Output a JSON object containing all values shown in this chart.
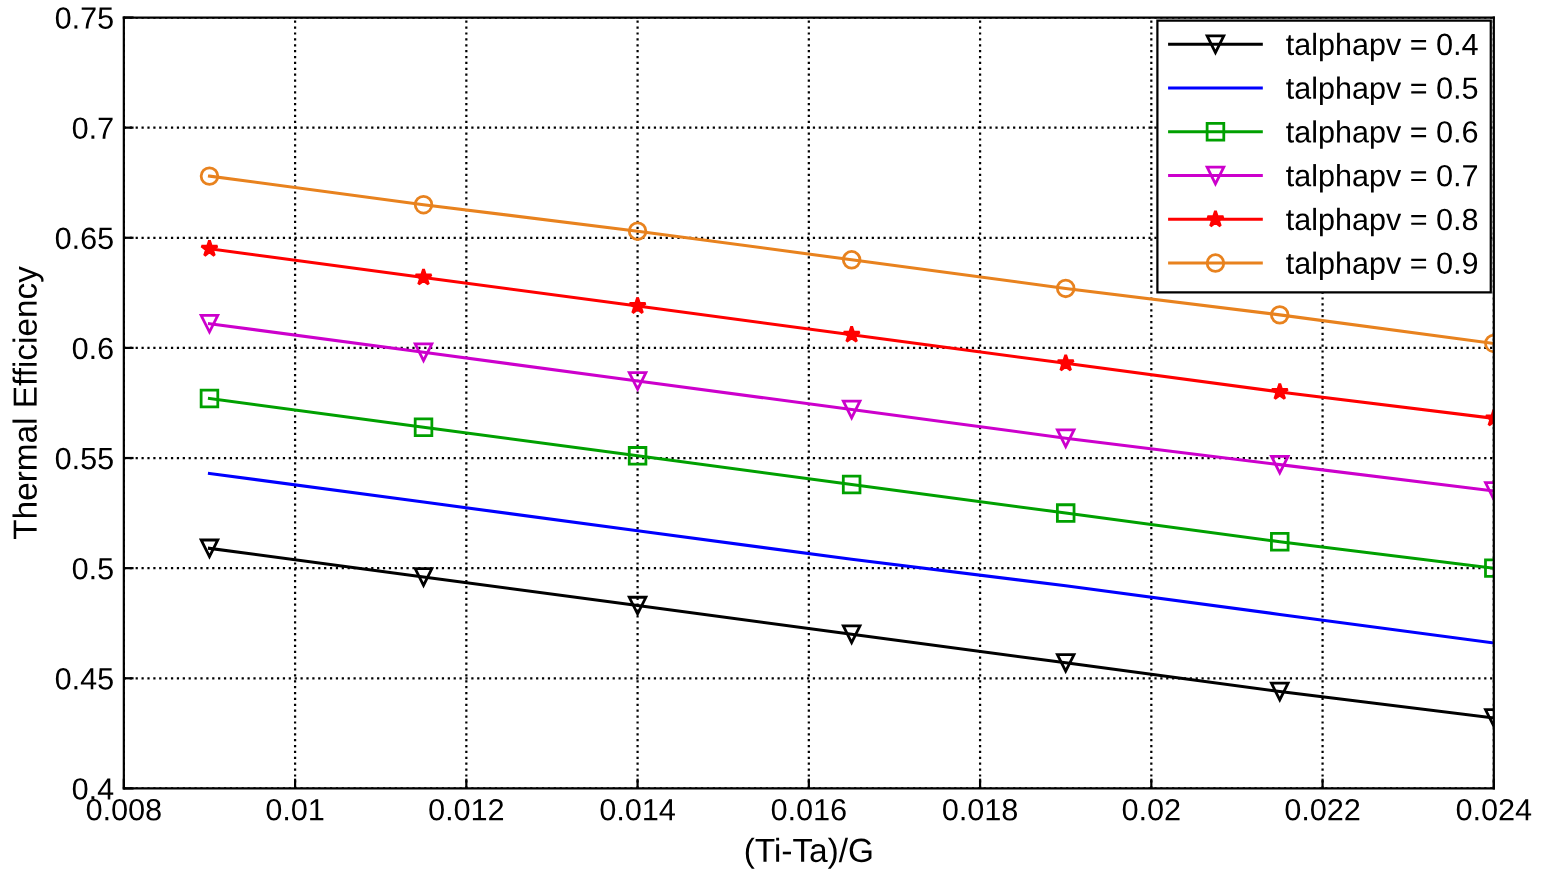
{
  "chart_data": {
    "type": "line",
    "xlabel": "(Ti-Ta)/G",
    "ylabel": "Thermal Efficiency",
    "x": [
      0.009,
      0.0115,
      0.014,
      0.0165,
      0.019,
      0.0215,
      0.024
    ],
    "series": [
      {
        "name": "talphapv = 0.4",
        "color": "#000000",
        "marker": "triangle",
        "values": [
          0.509,
          0.496,
          0.483,
          0.47,
          0.457,
          0.444,
          0.432
        ]
      },
      {
        "name": "talphapv = 0.5",
        "color": "#0000ff",
        "marker": "none",
        "values": [
          0.543,
          0.53,
          0.517,
          0.504,
          0.492,
          0.479,
          0.466
        ]
      },
      {
        "name": "talphapv = 0.6",
        "color": "#00a000",
        "marker": "square",
        "values": [
          0.577,
          0.564,
          0.551,
          0.538,
          0.525,
          0.512,
          0.5
        ]
      },
      {
        "name": "talphapv = 0.7",
        "color": "#cc00cc",
        "marker": "triangle",
        "values": [
          0.611,
          0.598,
          0.585,
          0.572,
          0.559,
          0.547,
          0.535
        ]
      },
      {
        "name": "talphapv = 0.8",
        "color": "#ff0000",
        "marker": "star",
        "values": [
          0.645,
          0.632,
          0.619,
          0.606,
          0.593,
          0.58,
          0.568
        ]
      },
      {
        "name": "talphapv = 0.9",
        "color": "#e8821e",
        "marker": "circle",
        "values": [
          0.678,
          0.665,
          0.653,
          0.64,
          0.627,
          0.615,
          0.602
        ]
      }
    ],
    "xlim": [
      0.008,
      0.024
    ],
    "xticks": [
      0.008,
      0.01,
      0.012,
      0.014,
      0.016,
      0.018,
      0.02,
      0.022,
      0.024
    ],
    "ylim": [
      0.4,
      0.75
    ],
    "yticks": [
      0.4,
      0.45,
      0.5,
      0.55,
      0.6,
      0.65,
      0.7,
      0.75
    ],
    "grid": true,
    "legend": "top right",
    "line_style": "solid"
  }
}
